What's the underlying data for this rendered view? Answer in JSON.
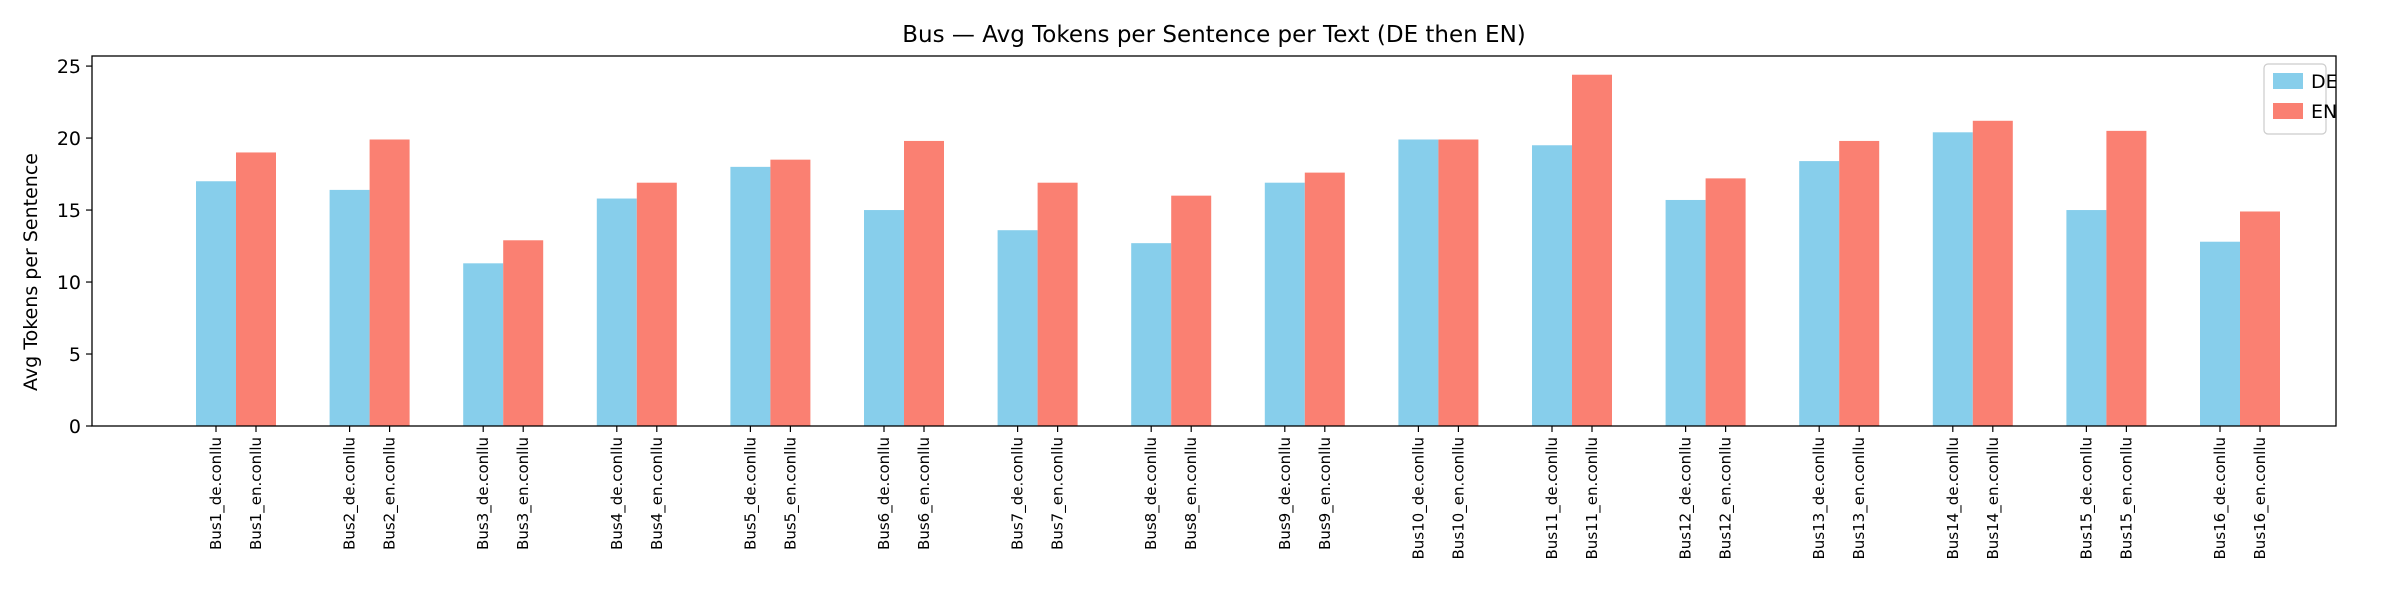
{
  "chart_data": {
    "type": "bar",
    "title": "Bus — Avg Tokens per Sentence per Text (DE then EN)",
    "xlabel": "",
    "ylabel": "Avg Tokens per Sentence",
    "ylim": [
      0,
      25.7
    ],
    "yticks": [
      0,
      5,
      10,
      15,
      20,
      25
    ],
    "grid": false,
    "legend_position": "top-right",
    "groups": [
      [
        "Bus1_de.conllu",
        "Bus1_en.conllu"
      ],
      [
        "Bus2_de.conllu",
        "Bus2_en.conllu"
      ],
      [
        "Bus3_de.conllu",
        "Bus3_en.conllu"
      ],
      [
        "Bus4_de.conllu",
        "Bus4_en.conllu"
      ],
      [
        "Bus5_de.conllu",
        "Bus5_en.conllu"
      ],
      [
        "Bus6_de.conllu",
        "Bus6_en.conllu"
      ],
      [
        "Bus7_de.conllu",
        "Bus7_en.conllu"
      ],
      [
        "Bus8_de.conllu",
        "Bus8_en.conllu"
      ],
      [
        "Bus9_de.conllu",
        "Bus9_en.conllu"
      ],
      [
        "Bus10_de.conllu",
        "Bus10_en.conllu"
      ],
      [
        "Bus11_de.conllu",
        "Bus11_en.conllu"
      ],
      [
        "Bus12_de.conllu",
        "Bus12_en.conllu"
      ],
      [
        "Bus13_de.conllu",
        "Bus13_en.conllu"
      ],
      [
        "Bus14_de.conllu",
        "Bus14_en.conllu"
      ],
      [
        "Bus15_de.conllu",
        "Bus15_en.conllu"
      ],
      [
        "Bus16_de.conllu",
        "Bus16_en.conllu"
      ]
    ],
    "series": [
      {
        "name": "DE",
        "color": "#87CEEB",
        "values": [
          17.0,
          16.4,
          11.3,
          15.8,
          18.0,
          15.0,
          13.6,
          12.7,
          16.9,
          19.9,
          19.5,
          15.7,
          18.4,
          20.4,
          15.0,
          12.8
        ]
      },
      {
        "name": "EN",
        "color": "#FA8072",
        "values": [
          19.0,
          19.9,
          12.9,
          16.9,
          18.5,
          19.8,
          16.9,
          16.0,
          17.6,
          19.9,
          24.4,
          17.2,
          19.8,
          21.2,
          20.5,
          14.9
        ]
      }
    ]
  }
}
